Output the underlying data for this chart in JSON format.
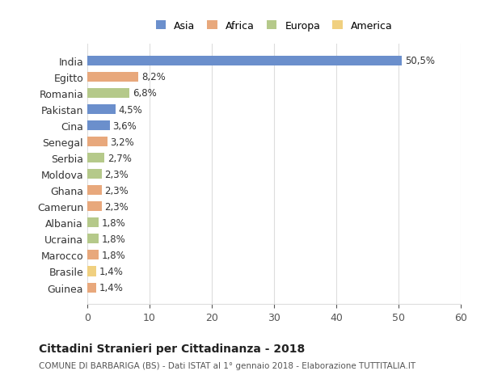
{
  "countries": [
    "India",
    "Egitto",
    "Romania",
    "Pakistan",
    "Cina",
    "Senegal",
    "Serbia",
    "Moldova",
    "Ghana",
    "Camerun",
    "Albania",
    "Ucraina",
    "Marocco",
    "Brasile",
    "Guinea"
  ],
  "values": [
    50.5,
    8.2,
    6.8,
    4.5,
    3.6,
    3.2,
    2.7,
    2.3,
    2.3,
    2.3,
    1.8,
    1.8,
    1.8,
    1.4,
    1.4
  ],
  "labels": [
    "50,5%",
    "8,2%",
    "6,8%",
    "4,5%",
    "3,6%",
    "3,2%",
    "2,7%",
    "2,3%",
    "2,3%",
    "2,3%",
    "1,8%",
    "1,8%",
    "1,8%",
    "1,4%",
    "1,4%"
  ],
  "continents": [
    "Asia",
    "Africa",
    "Europa",
    "Asia",
    "Asia",
    "Africa",
    "Europa",
    "Europa",
    "Africa",
    "Africa",
    "Europa",
    "Europa",
    "Africa",
    "America",
    "Africa"
  ],
  "colors": {
    "Asia": "#6b8fcc",
    "Africa": "#e8a87c",
    "Europa": "#b5c98a",
    "America": "#f0d080"
  },
  "legend_order": [
    "Asia",
    "Africa",
    "Europa",
    "America"
  ],
  "title": "Cittadini Stranieri per Cittadinanza - 2018",
  "subtitle": "COMUNE DI BARBARIGA (BS) - Dati ISTAT al 1° gennaio 2018 - Elaborazione TUTTITALIA.IT",
  "xlim": [
    0,
    60
  ],
  "xticks": [
    0,
    10,
    20,
    30,
    40,
    50,
    60
  ],
  "background_color": "#ffffff",
  "grid_color": "#dddddd"
}
